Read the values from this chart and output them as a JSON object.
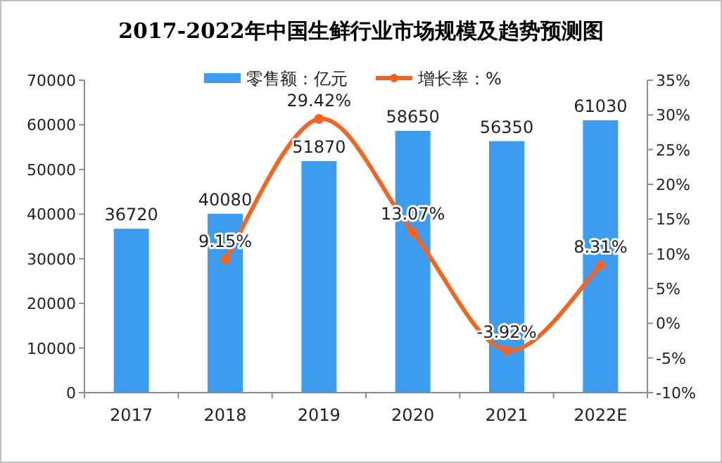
{
  "chart_data": {
    "type": "bar",
    "title": "2017-2022年中国生鲜行业市场规模及趋势预测图",
    "categories": [
      "2017",
      "2018",
      "2019",
      "2020",
      "2021",
      "2022E"
    ],
    "series": [
      {
        "name": "零售额：亿元",
        "color": "#3d9cf0",
        "values": [
          36720,
          40080,
          51870,
          58650,
          56350,
          61030
        ]
      },
      {
        "name": "增长率：%",
        "type": "line",
        "axis": "y2",
        "color": "#f26522",
        "marker": "circle",
        "values": [
          null,
          9.15,
          29.42,
          13.07,
          -3.92,
          8.31
        ],
        "value_labels": [
          null,
          "9.15%",
          "29.42%",
          "13.07%",
          "-3.92%",
          "8.31%"
        ]
      }
    ],
    "data_labels": true,
    "ylim": [
      0,
      70000
    ],
    "yticks": [
      0,
      10000,
      20000,
      30000,
      40000,
      50000,
      60000,
      70000
    ],
    "y2lim": [
      -10,
      35
    ],
    "y2ticks": [
      {
        "value": -10,
        "label": "-10%"
      },
      {
        "value": -5,
        "label": "-5%"
      },
      {
        "value": 0,
        "label": "0%"
      },
      {
        "value": 5,
        "label": "5%"
      },
      {
        "value": 10,
        "label": "10%"
      },
      {
        "value": 15,
        "label": "15%"
      },
      {
        "value": 20,
        "label": "20%"
      },
      {
        "value": 25,
        "label": "25%"
      },
      {
        "value": 30,
        "label": "30%"
      },
      {
        "value": 35,
        "label": "35%"
      }
    ],
    "grid": false,
    "legend": "top"
  }
}
